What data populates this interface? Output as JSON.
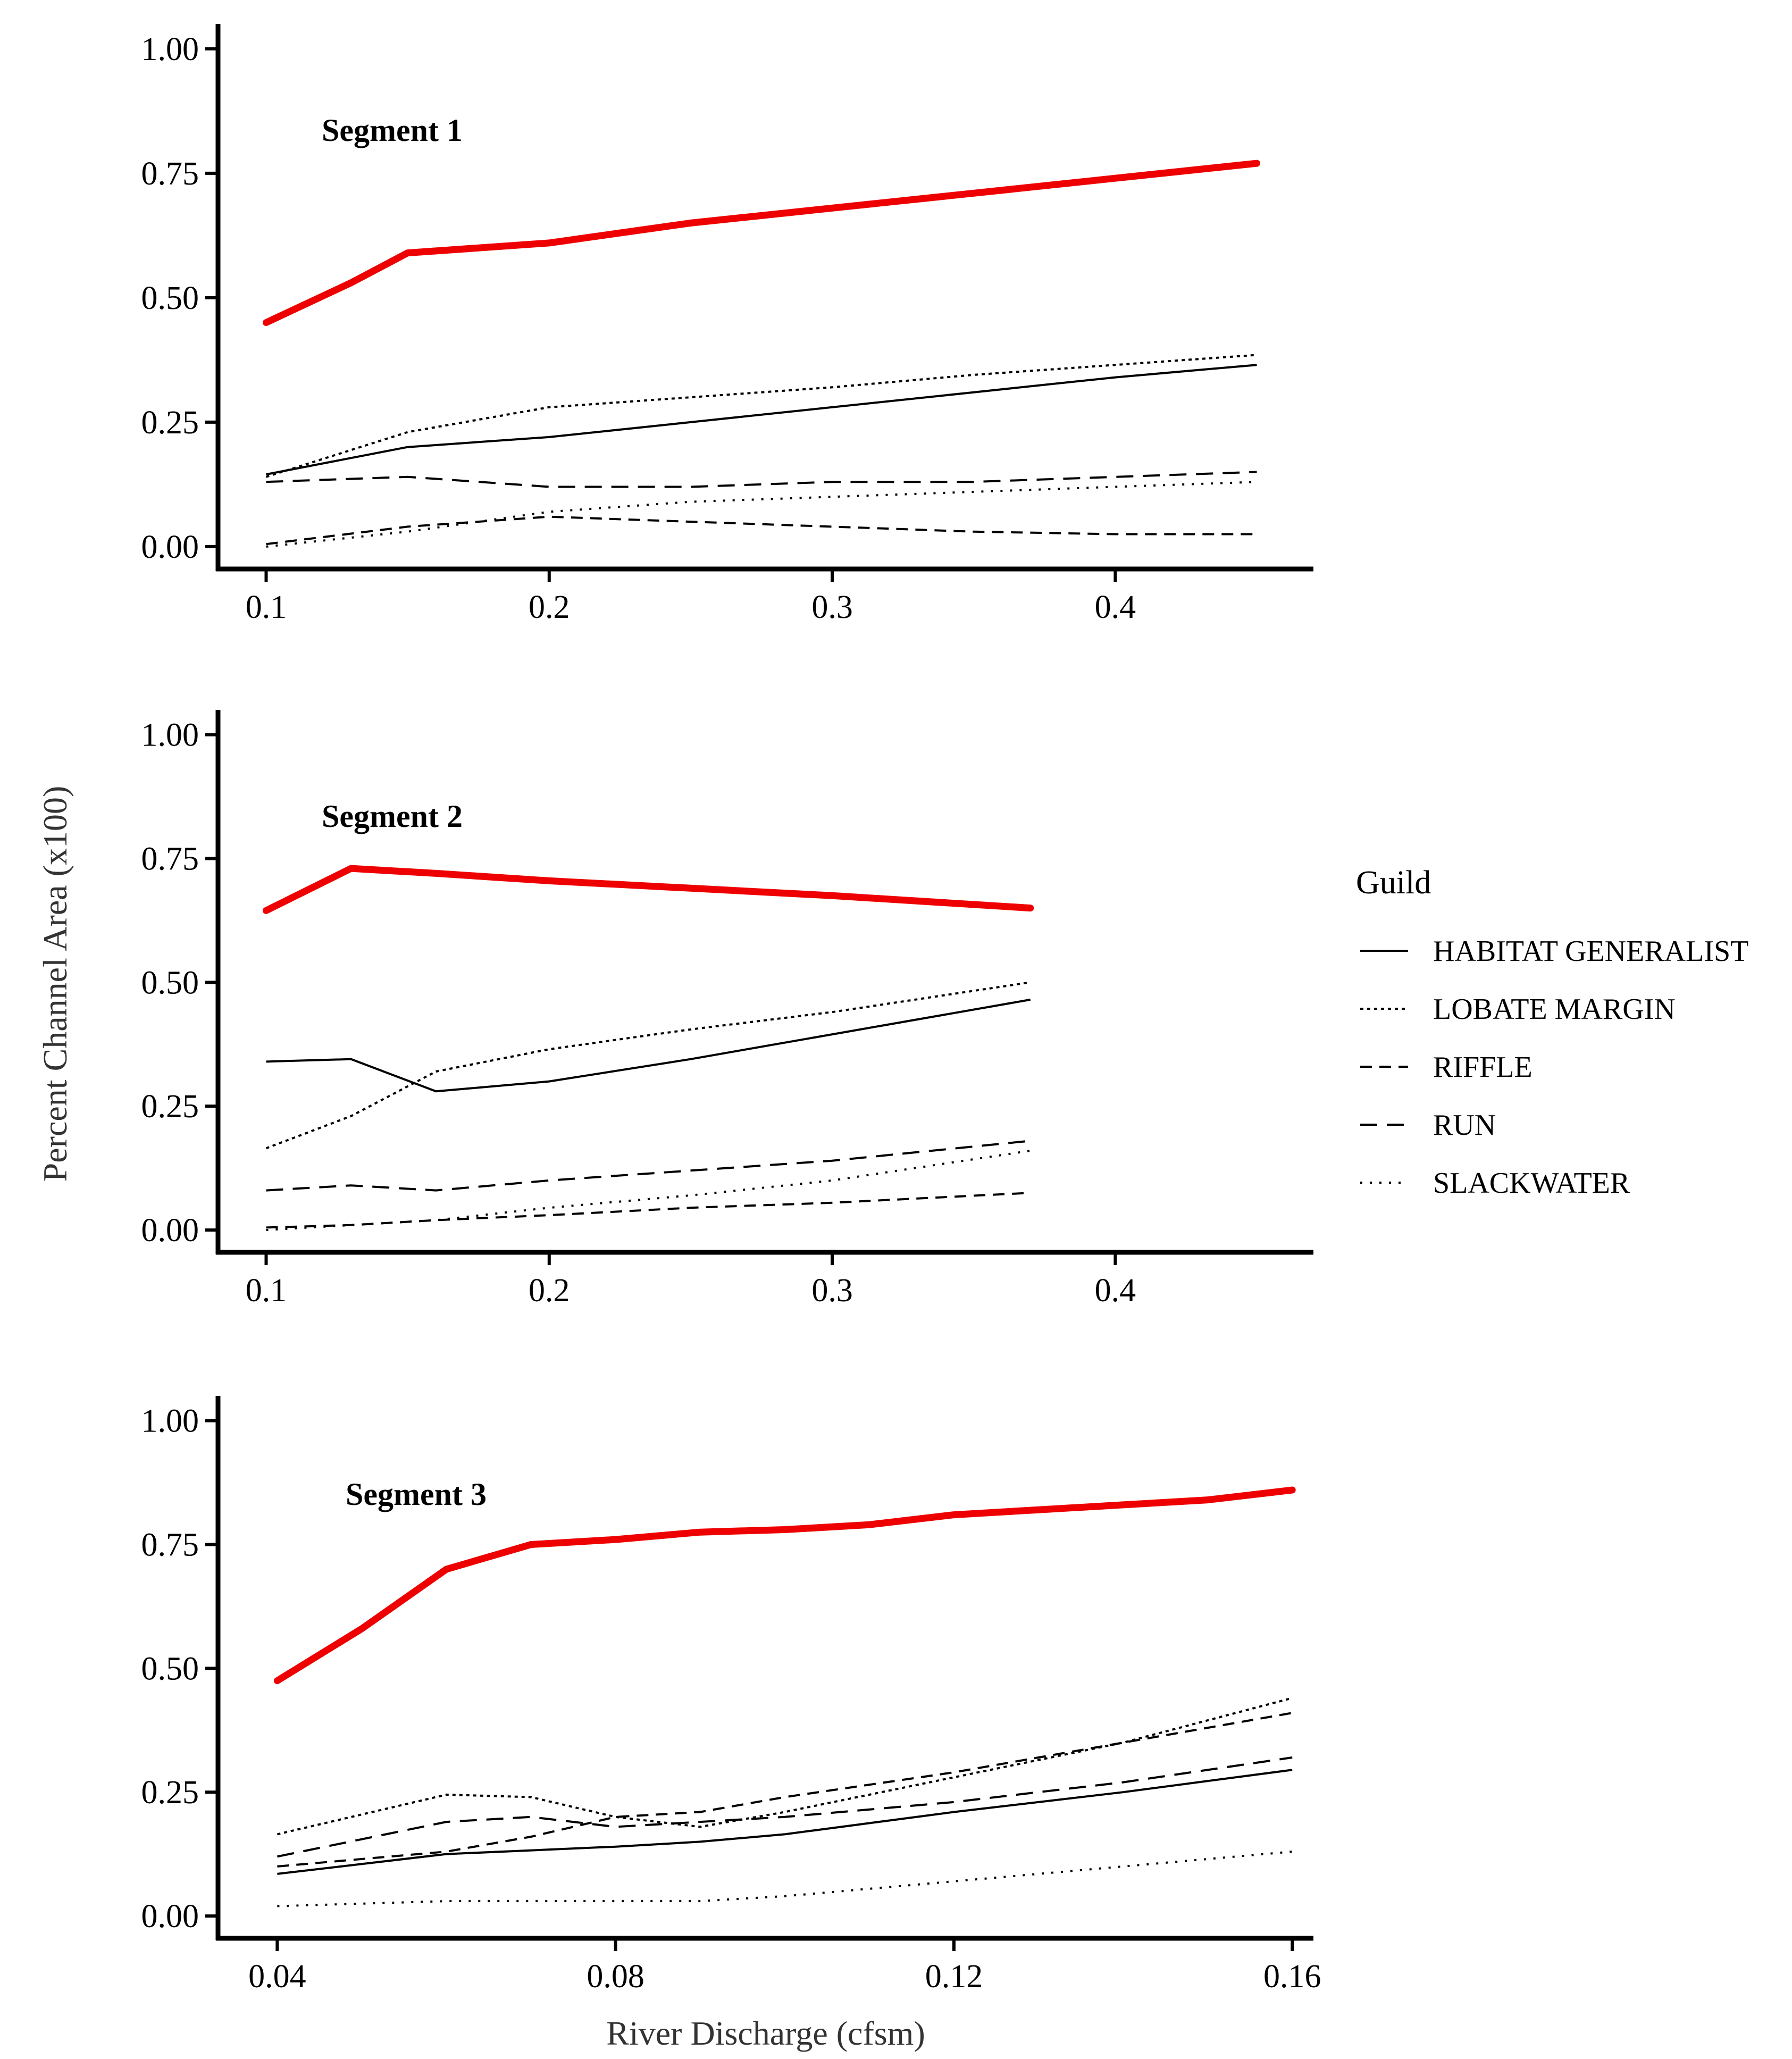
{
  "figure": {
    "ylabel": "Percent Channel Area (x100)",
    "xlabel": "River Discharge (cfsm)"
  },
  "colors": {
    "highlight": "#ee0000",
    "guild_line": "#000000",
    "axis": "#000000"
  },
  "legend": {
    "title": "Guild",
    "items": [
      {
        "label": "HABITAT GENERALIST",
        "dash": "solid"
      },
      {
        "label": "LOBATE MARGIN",
        "dash": "dotted"
      },
      {
        "label": "RIFFLE",
        "dash": "dashed"
      },
      {
        "label": "RUN",
        "dash": "longdash"
      },
      {
        "label": "SLACKWATER",
        "dash": "sparse-dot"
      }
    ]
  },
  "chart_data": [
    {
      "type": "line",
      "title": "Segment 1",
      "xlim": [
        0.083,
        0.47
      ],
      "ylim": [
        -0.045,
        1.05
      ],
      "xticks": [
        0.1,
        0.2,
        0.3,
        0.4
      ],
      "xtick_labels": [
        "0.1",
        "0.2",
        "0.3",
        "0.4"
      ],
      "yticks": [
        0,
        0.25,
        0.5,
        0.75,
        1.0
      ],
      "ytick_labels": [
        "0.00",
        "0.25",
        "0.50",
        "0.75",
        "1.00"
      ],
      "series": [
        {
          "name": "Total",
          "highlight": true,
          "x": [
            0.1,
            0.13,
            0.15,
            0.2,
            0.25,
            0.3,
            0.35,
            0.4,
            0.45
          ],
          "values": [
            0.45,
            0.53,
            0.59,
            0.61,
            0.65,
            0.68,
            0.71,
            0.74,
            0.77
          ]
        },
        {
          "name": "HABITAT GENERALIST",
          "dash": "solid",
          "x": [
            0.1,
            0.15,
            0.2,
            0.25,
            0.3,
            0.35,
            0.4,
            0.45
          ],
          "values": [
            0.145,
            0.2,
            0.22,
            0.25,
            0.28,
            0.31,
            0.34,
            0.365
          ]
        },
        {
          "name": "LOBATE MARGIN",
          "dash": "dotted",
          "x": [
            0.1,
            0.15,
            0.2,
            0.25,
            0.3,
            0.35,
            0.4,
            0.45
          ],
          "values": [
            0.14,
            0.23,
            0.28,
            0.3,
            0.32,
            0.345,
            0.365,
            0.385
          ]
        },
        {
          "name": "RIFFLE",
          "dash": "dashed",
          "x": [
            0.1,
            0.15,
            0.2,
            0.25,
            0.3,
            0.35,
            0.4,
            0.45
          ],
          "values": [
            0.005,
            0.04,
            0.06,
            0.05,
            0.04,
            0.03,
            0.025,
            0.025
          ]
        },
        {
          "name": "RUN",
          "dash": "longdash",
          "x": [
            0.1,
            0.15,
            0.2,
            0.25,
            0.3,
            0.35,
            0.4,
            0.45
          ],
          "values": [
            0.13,
            0.14,
            0.12,
            0.12,
            0.13,
            0.13,
            0.14,
            0.15
          ]
        },
        {
          "name": "SLACKWATER",
          "dash": "sparse-dot",
          "x": [
            0.1,
            0.15,
            0.2,
            0.25,
            0.3,
            0.35,
            0.4,
            0.45
          ],
          "values": [
            0.0,
            0.03,
            0.07,
            0.09,
            0.1,
            0.11,
            0.12,
            0.13
          ]
        }
      ]
    },
    {
      "type": "line",
      "title": "Segment 2",
      "xlim": [
        0.083,
        0.47
      ],
      "ylim": [
        -0.045,
        1.05
      ],
      "xticks": [
        0.1,
        0.2,
        0.3,
        0.4
      ],
      "xtick_labels": [
        "0.1",
        "0.2",
        "0.3",
        "0.4"
      ],
      "yticks": [
        0,
        0.25,
        0.5,
        0.75,
        1.0
      ],
      "ytick_labels": [
        "0.00",
        "0.25",
        "0.50",
        "0.75",
        "1.00"
      ],
      "series": [
        {
          "name": "Total",
          "highlight": true,
          "x": [
            0.1,
            0.13,
            0.16,
            0.2,
            0.25,
            0.3,
            0.37
          ],
          "values": [
            0.645,
            0.73,
            0.72,
            0.705,
            0.69,
            0.675,
            0.65
          ]
        },
        {
          "name": "HABITAT GENERALIST",
          "dash": "solid",
          "x": [
            0.1,
            0.13,
            0.16,
            0.2,
            0.25,
            0.3,
            0.37
          ],
          "values": [
            0.34,
            0.345,
            0.28,
            0.3,
            0.345,
            0.395,
            0.465
          ]
        },
        {
          "name": "LOBATE MARGIN",
          "dash": "dotted",
          "x": [
            0.1,
            0.13,
            0.16,
            0.2,
            0.25,
            0.3,
            0.37
          ],
          "values": [
            0.165,
            0.23,
            0.32,
            0.365,
            0.405,
            0.44,
            0.5
          ]
        },
        {
          "name": "RIFFLE",
          "dash": "dashed",
          "x": [
            0.1,
            0.13,
            0.16,
            0.2,
            0.25,
            0.3,
            0.37
          ],
          "values": [
            0.005,
            0.01,
            0.02,
            0.03,
            0.045,
            0.055,
            0.075
          ]
        },
        {
          "name": "RUN",
          "dash": "longdash",
          "x": [
            0.1,
            0.13,
            0.16,
            0.2,
            0.25,
            0.3,
            0.37
          ],
          "values": [
            0.08,
            0.09,
            0.08,
            0.1,
            0.12,
            0.14,
            0.18
          ]
        },
        {
          "name": "SLACKWATER",
          "dash": "sparse-dot",
          "x": [
            0.1,
            0.13,
            0.16,
            0.2,
            0.25,
            0.3,
            0.37
          ],
          "values": [
            0.0,
            0.01,
            0.02,
            0.045,
            0.07,
            0.1,
            0.16
          ]
        }
      ]
    },
    {
      "type": "line",
      "title": "Segment 3",
      "xlim": [
        0.033,
        0.1625
      ],
      "ylim": [
        -0.045,
        1.05
      ],
      "xticks": [
        0.04,
        0.08,
        0.12,
        0.16
      ],
      "xtick_labels": [
        "0.04",
        "0.08",
        "0.12",
        "0.16"
      ],
      "yticks": [
        0,
        0.25,
        0.5,
        0.75,
        1.0
      ],
      "ytick_labels": [
        "0.00",
        "0.25",
        "0.50",
        "0.75",
        "1.00"
      ],
      "series": [
        {
          "name": "Total",
          "highlight": true,
          "x": [
            0.04,
            0.05,
            0.06,
            0.07,
            0.08,
            0.09,
            0.1,
            0.11,
            0.12,
            0.13,
            0.14,
            0.15,
            0.16
          ],
          "values": [
            0.475,
            0.58,
            0.7,
            0.75,
            0.76,
            0.775,
            0.78,
            0.79,
            0.81,
            0.82,
            0.83,
            0.84,
            0.86
          ]
        },
        {
          "name": "HABITAT GENERALIST",
          "dash": "solid",
          "x": [
            0.04,
            0.06,
            0.08,
            0.09,
            0.1,
            0.12,
            0.14,
            0.16
          ],
          "values": [
            0.085,
            0.125,
            0.14,
            0.15,
            0.165,
            0.21,
            0.25,
            0.295
          ]
        },
        {
          "name": "LOBATE MARGIN",
          "dash": "dotted",
          "x": [
            0.04,
            0.06,
            0.07,
            0.08,
            0.09,
            0.1,
            0.12,
            0.14,
            0.16
          ],
          "values": [
            0.165,
            0.245,
            0.24,
            0.2,
            0.18,
            0.21,
            0.28,
            0.35,
            0.44
          ]
        },
        {
          "name": "RIFFLE",
          "dash": "dashed",
          "x": [
            0.04,
            0.06,
            0.07,
            0.08,
            0.09,
            0.1,
            0.12,
            0.14,
            0.16
          ],
          "values": [
            0.1,
            0.13,
            0.16,
            0.2,
            0.21,
            0.24,
            0.29,
            0.35,
            0.41
          ]
        },
        {
          "name": "RUN",
          "dash": "longdash",
          "x": [
            0.04,
            0.06,
            0.07,
            0.08,
            0.1,
            0.12,
            0.14,
            0.16
          ],
          "values": [
            0.12,
            0.19,
            0.2,
            0.18,
            0.2,
            0.23,
            0.27,
            0.32
          ]
        },
        {
          "name": "SLACKWATER",
          "dash": "sparse-dot",
          "x": [
            0.04,
            0.06,
            0.08,
            0.09,
            0.1,
            0.12,
            0.14,
            0.16
          ],
          "values": [
            0.02,
            0.03,
            0.03,
            0.03,
            0.04,
            0.07,
            0.1,
            0.13
          ]
        }
      ]
    }
  ]
}
